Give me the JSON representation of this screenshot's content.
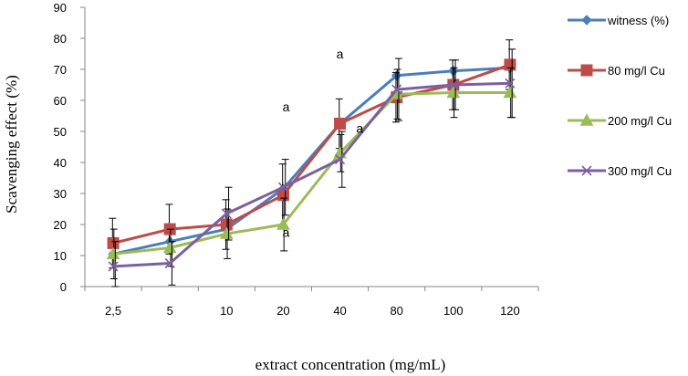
{
  "chart_data": {
    "type": "line",
    "title": "",
    "xlabel": "extract concentration (mg/mL)",
    "ylabel": "Scavenging effect (%)",
    "categories": [
      "2,5",
      "5",
      "10",
      "20",
      "40",
      "80",
      "100",
      "120"
    ],
    "ylim": [
      0,
      90
    ],
    "yticks": [
      "0",
      "10",
      "20",
      "30",
      "40",
      "50",
      "60",
      "70",
      "80",
      "90"
    ],
    "grid": false,
    "legend_position": "right",
    "series": [
      {
        "name": "witness (%)",
        "color": "#4a7ebb",
        "marker": "diamond",
        "values": [
          10.5,
          14.5,
          18.5,
          31.5,
          52.5,
          68,
          69.5,
          70.5
        ],
        "errors": [
          0,
          0,
          0,
          0,
          0,
          0,
          0,
          0
        ]
      },
      {
        "name": "80 mg/l Cu",
        "color": "#be4b48",
        "marker": "square",
        "values": [
          14,
          18.5,
          20,
          29.5,
          52.5,
          61,
          65,
          71.5
        ],
        "errors": [
          8,
          8,
          8,
          10,
          8,
          8,
          8,
          8
        ]
      },
      {
        "name": "200 mg/l Cu",
        "color": "#9bbb59",
        "marker": "triangle",
        "values": [
          10.5,
          12.5,
          17,
          20,
          43,
          62,
          62.5,
          62.5
        ],
        "errors": [
          8,
          6,
          8,
          8.5,
          6,
          8,
          8,
          8
        ]
      },
      {
        "name": "300 mg/l Cu",
        "color": "#7d5fa0",
        "marker": "x",
        "values": [
          6.5,
          7.5,
          23.5,
          32,
          41,
          63.5,
          65,
          65.5
        ],
        "errors": [
          8,
          7,
          8.5,
          9,
          9,
          10,
          8,
          11
        ]
      }
    ],
    "annotations": [
      {
        "text": "a",
        "category": 4.5,
        "value": 73.5
      },
      {
        "text": "a",
        "category": 3.55,
        "value": 56.5
      },
      {
        "text": "a",
        "category": 4.85,
        "value": 49.5
      },
      {
        "text": "a",
        "category": 3.55,
        "value": 16
      }
    ]
  }
}
